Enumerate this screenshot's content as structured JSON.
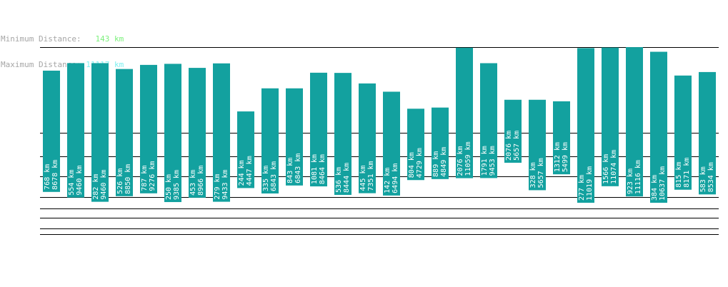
{
  "stats": {
    "min_label": "Minimum Distance:",
    "min_value": "143 km",
    "max_label": "Maximum Distance:",
    "max_value": "11117 km"
  },
  "colors": {
    "bar": "#13a19f",
    "line": "#000000",
    "text_on_bar": "#ffffff"
  },
  "chart_data": {
    "type": "bar",
    "bars": [
      {
        "top": 8678,
        "bottom": 768
      },
      {
        "top": 9460,
        "bottom": 554
      },
      {
        "top": 9460,
        "bottom": 282
      },
      {
        "top": 8850,
        "bottom": 526
      },
      {
        "top": 9276,
        "bottom": 787
      },
      {
        "top": 9385,
        "bottom": 250
      },
      {
        "top": 8966,
        "bottom": 453
      },
      {
        "top": 9433,
        "bottom": 279
      },
      {
        "top": 4447,
        "bottom": 244
      },
      {
        "top": 6843,
        "bottom": 335
      },
      {
        "top": 6843,
        "bottom": 843
      },
      {
        "top": 8464,
        "bottom": 1081
      },
      {
        "top": 8444,
        "bottom": 536
      },
      {
        "top": 7351,
        "bottom": 445
      },
      {
        "top": 6494,
        "bottom": 142
      },
      {
        "top": 4729,
        "bottom": 804
      },
      {
        "top": 4849,
        "bottom": 889
      },
      {
        "top": 11059,
        "bottom": 2076
      },
      {
        "top": 9453,
        "bottom": 1791
      },
      {
        "top": 5657,
        "bottom": 2076
      },
      {
        "top": 5657,
        "bottom": 328
      },
      {
        "top": 5499,
        "bottom": 1312
      },
      {
        "top": 11019,
        "bottom": 277
      },
      {
        "top": 11074,
        "bottom": 1566
      },
      {
        "top": 11116,
        "bottom": 923
      },
      {
        "top": 10637,
        "bottom": 384
      },
      {
        "top": 8171,
        "bottom": 815
      },
      {
        "top": 8534,
        "bottom": 583
      }
    ],
    "unit": "km",
    "xlabel": "",
    "ylabel": ""
  }
}
